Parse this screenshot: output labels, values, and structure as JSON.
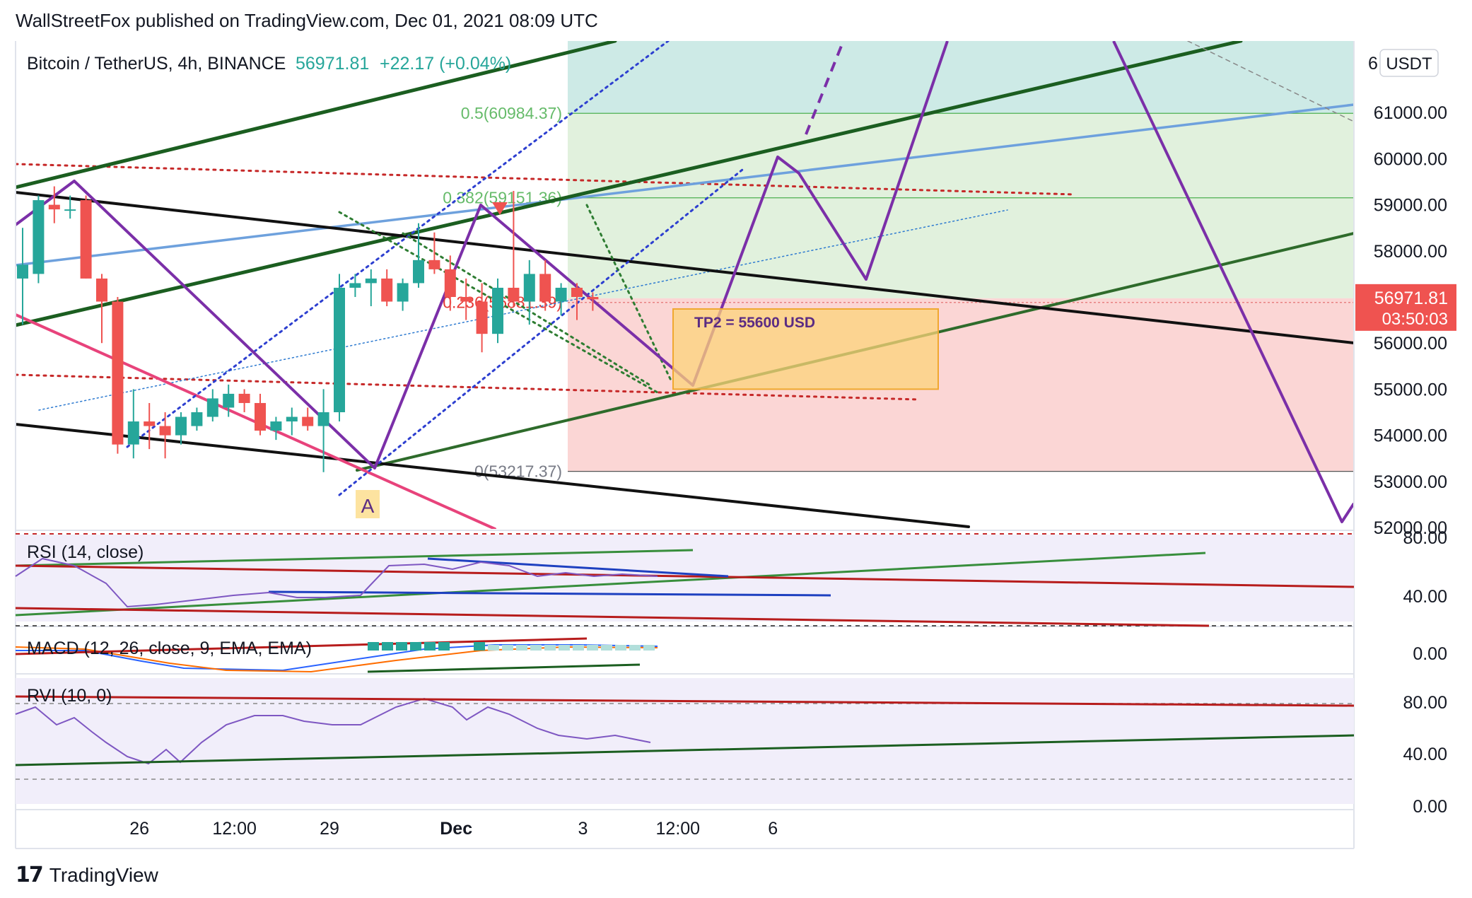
{
  "header": {
    "publisher_line": "WallStreetFox published on TradingView.com, Dec 01, 2021 08:09 UTC"
  },
  "brand": {
    "name": "TradingView",
    "logo_text": "17"
  },
  "chart_data": {
    "type": "candlestick",
    "symbol": "Bitcoin / TetherUS, 4h, BINANCE",
    "last_price": "56971.81",
    "change": "+22.17 (+0.04%)",
    "currency_button": "USDT",
    "price_tag": {
      "value": "56971.81",
      "countdown": "03:50:03"
    },
    "y_axis_ticks": [
      "61000.00",
      "60000.00",
      "59000.00",
      "58000.00",
      "57000.00",
      "56000.00",
      "55000.00",
      "54000.00",
      "53000.00",
      "52000.00"
    ],
    "y_axis_partial": "6",
    "ylim": [
      51950,
      62550
    ],
    "x_axis_ticks": [
      {
        "label": "26",
        "bar": 3
      },
      {
        "label": "12:00",
        "bar": 9
      },
      {
        "label": "29",
        "bar": 15
      },
      {
        "label": "Dec",
        "bar": 23,
        "bold": true
      },
      {
        "label": "3",
        "bar": 31
      },
      {
        "label": "12:00",
        "bar": 37
      },
      {
        "label": "6",
        "bar": 43
      }
    ],
    "fib_levels": [
      {
        "label": "0.5(60984.37)",
        "price": 60984.37
      },
      {
        "label": "0.382(59151.36)",
        "price": 59151.36
      },
      {
        "label": "0.236(56881.39)",
        "price": 56881.39
      },
      {
        "label": "0(53217.37)",
        "price": 53217.37
      }
    ],
    "target_box": {
      "label": "TP2 = 55600 USD",
      "price_top": 56740,
      "price_bottom": 55000
    },
    "pattern_label": "A",
    "candles": [
      {
        "bar": 0,
        "o": 57400,
        "h": 58500,
        "l": 56400,
        "c": 57700
      },
      {
        "bar": 1,
        "o": 57500,
        "h": 59200,
        "l": 57300,
        "c": 59100
      },
      {
        "bar": 2,
        "o": 59000,
        "h": 59400,
        "l": 58600,
        "c": 58900
      },
      {
        "bar": 3,
        "o": 58900,
        "h": 59200,
        "l": 58700,
        "c": 58900
      },
      {
        "bar": 4,
        "o": 59100,
        "h": 59200,
        "l": 57400,
        "c": 57400
      },
      {
        "bar": 5,
        "o": 57400,
        "h": 57500,
        "l": 56000,
        "c": 56900
      },
      {
        "bar": 6,
        "o": 56900,
        "h": 57000,
        "l": 53600,
        "c": 53800
      },
      {
        "bar": 7,
        "o": 53800,
        "h": 55000,
        "l": 53500,
        "c": 54300
      },
      {
        "bar": 8,
        "o": 54300,
        "h": 54700,
        "l": 53700,
        "c": 54200
      },
      {
        "bar": 9,
        "o": 54200,
        "h": 54500,
        "l": 53500,
        "c": 54000
      },
      {
        "bar": 10,
        "o": 54000,
        "h": 54500,
        "l": 53800,
        "c": 54400
      },
      {
        "bar": 11,
        "o": 54200,
        "h": 54600,
        "l": 54100,
        "c": 54500
      },
      {
        "bar": 12,
        "o": 54400,
        "h": 55000,
        "l": 54300,
        "c": 54800
      },
      {
        "bar": 13,
        "o": 54600,
        "h": 55100,
        "l": 54400,
        "c": 54900
      },
      {
        "bar": 14,
        "o": 54900,
        "h": 55000,
        "l": 54500,
        "c": 54700
      },
      {
        "bar": 15,
        "o": 54700,
        "h": 54900,
        "l": 54000,
        "c": 54100
      },
      {
        "bar": 16,
        "o": 54100,
        "h": 54400,
        "l": 53900,
        "c": 54300
      },
      {
        "bar": 17,
        "o": 54300,
        "h": 54600,
        "l": 54000,
        "c": 54400
      },
      {
        "bar": 18,
        "o": 54400,
        "h": 54600,
        "l": 54100,
        "c": 54200
      },
      {
        "bar": 19,
        "o": 54200,
        "h": 55000,
        "l": 53200,
        "c": 54500
      },
      {
        "bar": 20,
        "o": 54500,
        "h": 57500,
        "l": 54300,
        "c": 57200
      },
      {
        "bar": 21,
        "o": 57200,
        "h": 57500,
        "l": 57000,
        "c": 57300
      },
      {
        "bar": 22,
        "o": 57300,
        "h": 57600,
        "l": 56800,
        "c": 57400
      },
      {
        "bar": 23,
        "o": 57400,
        "h": 57600,
        "l": 56800,
        "c": 56900
      },
      {
        "bar": 24,
        "o": 56900,
        "h": 57400,
        "l": 56700,
        "c": 57300
      },
      {
        "bar": 25,
        "o": 57300,
        "h": 58600,
        "l": 57200,
        "c": 57800
      },
      {
        "bar": 26,
        "o": 57800,
        "h": 58400,
        "l": 57500,
        "c": 57600
      },
      {
        "bar": 27,
        "o": 57600,
        "h": 57900,
        "l": 56700,
        "c": 57000
      },
      {
        "bar": 28,
        "o": 57000,
        "h": 57400,
        "l": 56500,
        "c": 56900
      },
      {
        "bar": 29,
        "o": 56900,
        "h": 57300,
        "l": 55800,
        "c": 56200
      },
      {
        "bar": 30,
        "o": 56200,
        "h": 57400,
        "l": 56000,
        "c": 57200
      },
      {
        "bar": 31,
        "o": 57200,
        "h": 59300,
        "l": 56800,
        "c": 56900
      },
      {
        "bar": 32,
        "o": 56900,
        "h": 57800,
        "l": 56400,
        "c": 57500
      },
      {
        "bar": 33,
        "o": 57500,
        "h": 57800,
        "l": 56700,
        "c": 56900
      },
      {
        "bar": 34,
        "o": 56900,
        "h": 57300,
        "l": 56600,
        "c": 57200
      },
      {
        "bar": 35,
        "o": 57200,
        "h": 57300,
        "l": 56500,
        "c": 57000
      },
      {
        "bar": 36,
        "o": 57000,
        "h": 57100,
        "l": 56700,
        "c": 56950
      }
    ],
    "indicators": [
      {
        "name": "RSI (14, close)",
        "ticks": [
          "80.00",
          "40.00"
        ]
      },
      {
        "name": "MACD (12, 26, close, 9, EMA, EMA)",
        "ticks": [
          "0.00"
        ]
      },
      {
        "name": "RVI (10, 0)",
        "ticks": [
          "80.00",
          "40.00",
          "0.00"
        ]
      }
    ],
    "colors": {
      "up": "#26a69a",
      "down": "#ef5350",
      "fib_top": "#cdeae6",
      "fib_mid": "#e1f1dd",
      "fib_loss": "#fbd6d5",
      "projection": "#7b2fa8",
      "channel_green": "#1b5e20",
      "trend_black": "#000000",
      "trend_pink": "#e8437b",
      "blue_line": "#6ea1dd",
      "dotted_red": "#c62828",
      "dotted_blue": "#2d3fd0",
      "dotted_green": "#2e7d32",
      "tp_box": "#fcd37a",
      "price_tag": "#ef5350",
      "indicator_bg": "#f1eefa"
    }
  }
}
